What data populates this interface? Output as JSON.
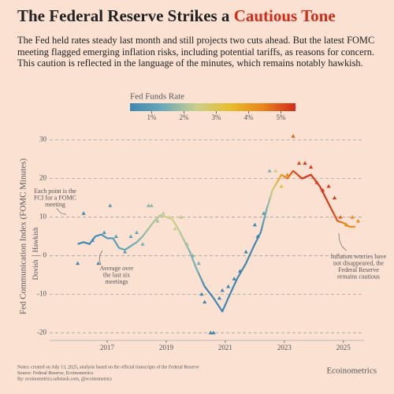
{
  "chart_data": {
    "type": "line",
    "title": "The Federal Reserve Strikes a ",
    "title_highlight": "Cautious Tone",
    "subtitle": "The Fed held rates steady last month and still projects two cuts ahead. But the latest FOMC meeting flagged emerging inflation risks, including potential tariffs, as reasons for concern. This caution is reflected in the language of the minutes, which remains notably hawkish.",
    "ylabel": "Fed Communication Index (FOMC Minutes)",
    "hawkish_label": "Hawkish",
    "dovish_label": "Dovish",
    "colorbar": {
      "title": "Fed Funds Rate",
      "lim": [
        0.33,
        5.45
      ],
      "ticks": [
        {
          "value": 1,
          "label": "1%"
        },
        {
          "value": 2,
          "label": "2%"
        },
        {
          "value": 3,
          "label": "3%"
        },
        {
          "value": 4,
          "label": "4%"
        },
        {
          "value": 5,
          "label": "5%"
        }
      ],
      "colors": [
        "#3f87b0",
        "#6aaab8",
        "#c9cf8c",
        "#e8bf2e",
        "#e8861c",
        "#d42a1a"
      ]
    },
    "xlim": [
      2015.05,
      2025.7
    ],
    "xticks": [
      2017,
      2019,
      2021,
      2023,
      2025
    ],
    "ylim": [
      -22,
      33
    ],
    "yticks": [
      -20,
      -10,
      0,
      10,
      20,
      30
    ],
    "grid": true,
    "series": [
      {
        "type": "line",
        "x": [
          2016.0,
          2016.2,
          2016.4,
          2016.6,
          2016.8,
          2017.0,
          2017.2,
          2017.4,
          2017.6,
          2017.8,
          2018.0,
          2018.2,
          2018.4,
          2018.6,
          2018.8,
          2019.0,
          2019.2,
          2019.4,
          2019.6,
          2019.8,
          2020.0,
          2020.3,
          2020.6,
          2020.9,
          2021.1,
          2021.4,
          2021.7,
          2022.0,
          2022.2,
          2022.4,
          2022.6,
          2022.9,
          2023.1,
          2023.3,
          2023.6,
          2023.9,
          2024.2,
          2024.4,
          2024.6,
          2024.8,
          2025.0,
          2025.2,
          2025.4
        ],
        "values": [
          3,
          3.5,
          3,
          5,
          5.5,
          4.5,
          4.5,
          2,
          1.5,
          2.5,
          3.5,
          5,
          7,
          9,
          10.5,
          10,
          9.5,
          7,
          4,
          1,
          -3,
          -8,
          -11,
          -14.5,
          -11,
          -6,
          -2,
          3,
          6,
          12,
          17,
          21,
          20,
          22,
          20,
          21,
          18,
          15,
          12,
          9,
          8.5,
          7.5,
          7.5
        ],
        "rate": [
          0.4,
          0.4,
          0.4,
          0.5,
          0.6,
          0.9,
          1.0,
          1.1,
          1.2,
          1.3,
          1.5,
          1.7,
          1.9,
          2.0,
          2.2,
          2.4,
          2.4,
          2.3,
          2.0,
          1.6,
          1.5,
          0.3,
          0.1,
          0.1,
          0.1,
          0.1,
          0.1,
          0.1,
          0.5,
          1.5,
          2.5,
          4.0,
          4.6,
          5.0,
          5.3,
          5.3,
          5.3,
          5.3,
          5.2,
          4.9,
          4.4,
          4.3,
          4.3
        ]
      },
      {
        "type": "scatter",
        "x": [
          2016.0,
          2016.2,
          2016.5,
          2016.7,
          2016.9,
          2017.1,
          2017.3,
          2017.6,
          2017.8,
          2018.0,
          2018.2,
          2018.4,
          2018.5,
          2018.7,
          2018.9,
          2019.1,
          2019.3,
          2019.5,
          2019.7,
          2019.9,
          2020.1,
          2020.2,
          2020.3,
          2020.5,
          2020.6,
          2020.8,
          2020.9,
          2021.1,
          2021.3,
          2021.5,
          2021.7,
          2022.0,
          2022.1,
          2022.3,
          2022.5,
          2022.7,
          2022.9,
          2023.1,
          2023.3,
          2023.5,
          2023.7,
          2023.9,
          2024.1,
          2024.3,
          2024.5,
          2024.7,
          2024.9,
          2025.1,
          2025.3,
          2025.5
        ],
        "values": [
          -2,
          11,
          4,
          -2,
          6,
          13,
          5,
          1,
          5,
          6,
          3,
          13,
          13,
          9,
          11,
          10,
          7,
          10,
          3,
          0,
          -2,
          -10,
          -12,
          -20,
          -20,
          -11,
          -9,
          -8,
          -6,
          -4,
          1,
          8,
          5,
          11,
          22,
          22,
          18,
          21,
          31,
          24,
          24,
          23,
          19,
          17,
          18,
          15,
          10,
          8,
          10,
          9
        ],
        "rate": [
          0.4,
          0.4,
          0.4,
          0.5,
          0.7,
          0.9,
          1.0,
          1.1,
          1.2,
          1.4,
          1.5,
          1.7,
          1.8,
          2.0,
          2.2,
          2.4,
          2.4,
          2.3,
          2.0,
          1.6,
          1.5,
          0.3,
          0.1,
          0.1,
          0.1,
          0.1,
          0.1,
          0.1,
          0.1,
          0.1,
          0.1,
          0.1,
          0.3,
          1.0,
          1.6,
          2.4,
          3.2,
          4.3,
          4.8,
          5.1,
          5.3,
          5.3,
          5.3,
          5.3,
          5.3,
          5.3,
          4.8,
          4.4,
          4.3,
          4.3
        ]
      }
    ],
    "annotations": [
      {
        "lines": [
          "Each point is the",
          "FCI for a FOMC",
          "meeting"
        ]
      },
      {
        "lines": [
          "Average over",
          "the last six",
          "meetings"
        ]
      },
      {
        "lines": [
          "Inflation worries have",
          "not disappeared, the",
          "Federal Reserve",
          "remains cautious"
        ]
      }
    ],
    "notes": [
      "Notes: created on July 13, 2025, analysis based on the official transcripts of the Federal Reserve",
      "Source: Federal Reserve, Ecoinometrics",
      "By: ecoinometrics.substack.com, @ecoinometrics"
    ],
    "brand": "Ecoinometrics"
  }
}
